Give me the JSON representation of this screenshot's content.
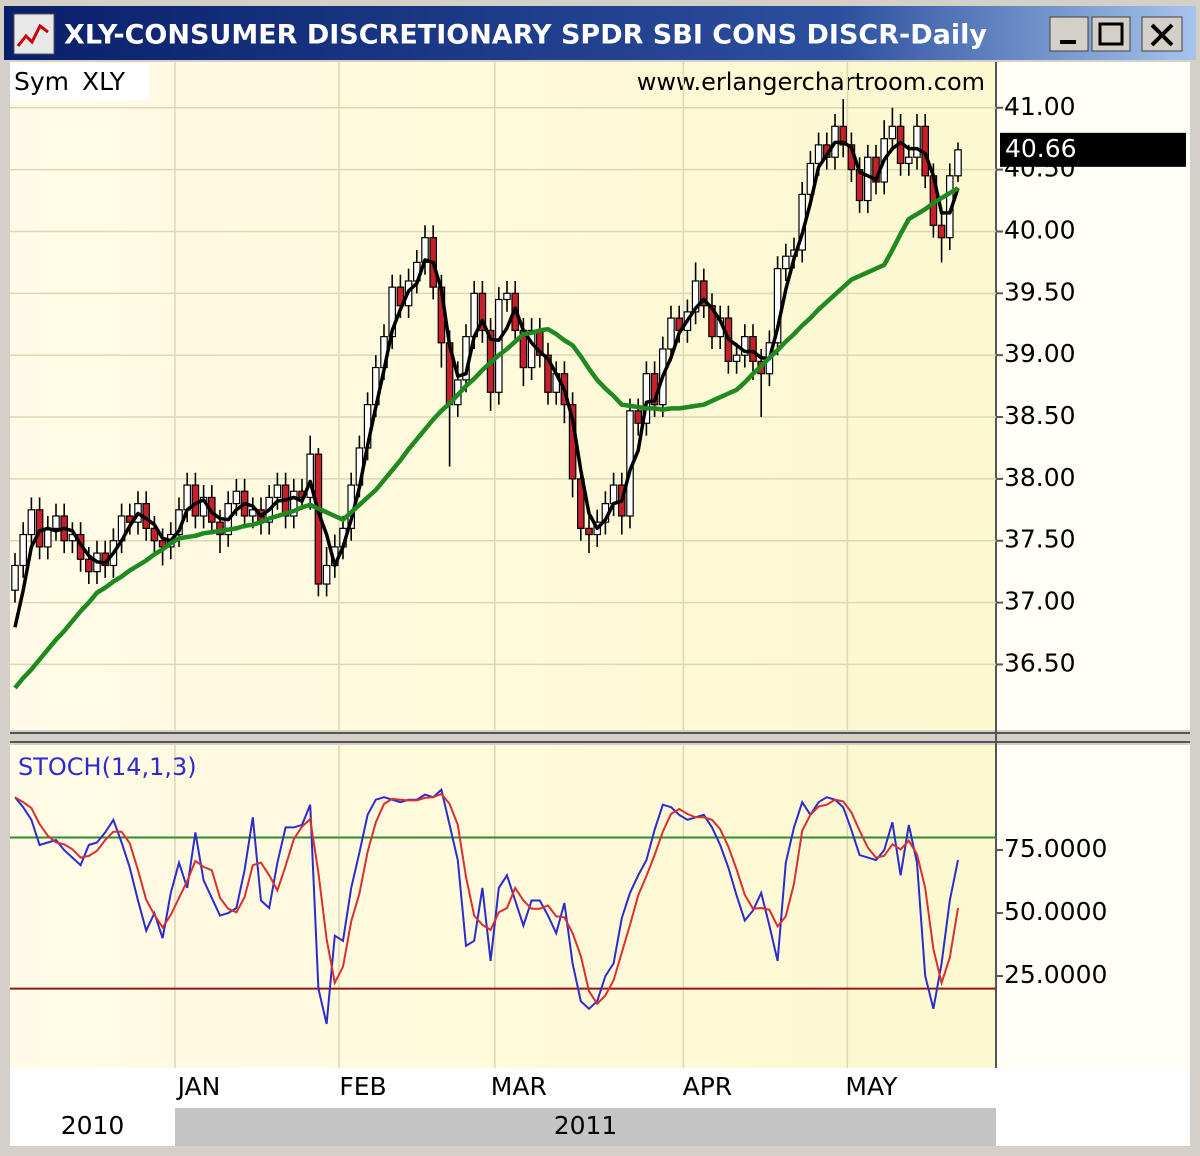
{
  "window": {
    "title": "XLY-CONSUMER DISCRETIONARY SPDR SBI CONS DISCR-Daily"
  },
  "chart_data": [
    {
      "type": "candlestick",
      "symbol_label": "Sym",
      "symbol": "XLY",
      "watermark": "www.erlangerchartroom.com",
      "categories": [
        null,
        null,
        null,
        null,
        null,
        null,
        null,
        null,
        null,
        null,
        null,
        null,
        null,
        null,
        null,
        null,
        null,
        null,
        null,
        null,
        "JAN",
        null,
        null,
        null,
        null,
        null,
        null,
        null,
        null,
        null,
        null,
        null,
        null,
        null,
        null,
        null,
        null,
        null,
        null,
        null,
        "FEB",
        null,
        null,
        null,
        null,
        null,
        null,
        null,
        null,
        null,
        null,
        null,
        null,
        null,
        null,
        null,
        null,
        null,
        null,
        "MAR",
        null,
        null,
        null,
        null,
        null,
        null,
        null,
        null,
        null,
        null,
        null,
        null,
        null,
        null,
        null,
        null,
        null,
        null,
        null,
        null,
        null,
        null,
        "APR",
        null,
        null,
        null,
        null,
        null,
        null,
        null,
        null,
        null,
        null,
        null,
        null,
        null,
        null,
        null,
        null,
        null,
        null,
        null,
        "MAY",
        null,
        null,
        null,
        null,
        null,
        null,
        null,
        null,
        null,
        null,
        null,
        null,
        null
      ],
      "open": [
        37.1,
        37.3,
        37.55,
        37.75,
        37.45,
        37.6,
        37.7,
        37.5,
        37.55,
        37.35,
        37.25,
        37.4,
        37.3,
        37.5,
        37.7,
        37.65,
        37.8,
        37.6,
        37.5,
        37.45,
        37.55,
        37.75,
        37.95,
        37.7,
        37.85,
        37.65,
        37.55,
        37.8,
        37.9,
        37.7,
        37.75,
        37.65,
        37.85,
        37.95,
        37.7,
        37.9,
        37.85,
        38.2,
        37.15,
        37.3,
        37.45,
        37.6,
        37.95,
        38.25,
        38.6,
        38.9,
        39.15,
        39.55,
        39.4,
        39.6,
        39.75,
        39.95,
        39.55,
        39.1,
        38.6,
        38.8,
        39.15,
        39.5,
        39.2,
        38.7,
        39.45,
        39.5,
        39.2,
        38.9,
        39.2,
        39.0,
        38.7,
        38.85,
        38.6,
        38.0,
        37.6,
        37.55,
        37.65,
        37.8,
        37.95,
        37.7,
        38.55,
        38.45,
        38.85,
        38.6,
        39.05,
        39.3,
        39.2,
        39.35,
        39.6,
        39.4,
        39.15,
        39.3,
        38.95,
        39.0,
        39.15,
        38.95,
        38.85,
        39.1,
        39.7,
        39.8,
        39.85,
        40.3,
        40.55,
        40.7,
        40.6,
        40.85,
        40.7,
        40.5,
        40.25,
        40.6,
        40.4,
        40.75,
        40.85,
        40.55,
        40.6,
        40.85,
        40.45,
        40.05,
        39.95,
        40.45
      ],
      "high": [
        37.4,
        37.65,
        37.85,
        37.85,
        37.7,
        37.8,
        37.8,
        37.65,
        37.65,
        37.45,
        37.5,
        37.5,
        37.6,
        37.8,
        37.8,
        37.9,
        37.9,
        37.7,
        37.6,
        37.65,
        37.85,
        38.05,
        38.05,
        37.95,
        37.95,
        37.75,
        37.9,
        38.0,
        38.0,
        37.85,
        37.85,
        37.95,
        38.05,
        38.05,
        38.0,
        38.0,
        38.35,
        38.25,
        37.45,
        37.55,
        37.7,
        38.05,
        38.35,
        38.7,
        39.0,
        39.25,
        39.65,
        39.65,
        39.7,
        39.85,
        40.05,
        40.05,
        39.65,
        39.2,
        38.95,
        39.25,
        39.6,
        39.6,
        39.3,
        39.55,
        39.6,
        39.6,
        39.3,
        39.3,
        39.3,
        39.1,
        38.95,
        38.95,
        38.7,
        38.1,
        37.7,
        37.75,
        37.9,
        38.05,
        38.05,
        38.65,
        38.65,
        38.95,
        38.95,
        39.15,
        39.4,
        39.4,
        39.45,
        39.75,
        39.7,
        39.5,
        39.4,
        39.4,
        39.1,
        39.25,
        39.25,
        39.05,
        39.2,
        39.8,
        39.9,
        39.95,
        40.4,
        40.65,
        40.8,
        40.8,
        40.95,
        41.07,
        40.8,
        40.6,
        40.7,
        40.7,
        40.9,
        41.0,
        40.95,
        40.7,
        40.95,
        40.95,
        40.55,
        40.15,
        40.55,
        40.72
      ],
      "low": [
        37.0,
        37.2,
        37.45,
        37.35,
        37.35,
        37.5,
        37.4,
        37.4,
        37.25,
        37.15,
        37.15,
        37.2,
        37.2,
        37.4,
        37.55,
        37.55,
        37.5,
        37.4,
        37.3,
        37.35,
        37.45,
        37.65,
        37.6,
        37.6,
        37.55,
        37.4,
        37.45,
        37.7,
        37.6,
        37.6,
        37.55,
        37.55,
        37.75,
        37.6,
        37.6,
        37.75,
        37.75,
        37.05,
        37.05,
        37.2,
        37.35,
        37.5,
        37.85,
        38.15,
        38.5,
        38.8,
        39.05,
        39.3,
        39.3,
        39.5,
        39.65,
        39.45,
        38.9,
        38.1,
        38.5,
        38.7,
        39.05,
        39.1,
        38.55,
        38.6,
        39.35,
        39.1,
        38.75,
        38.8,
        38.9,
        38.6,
        38.6,
        38.45,
        37.85,
        37.5,
        37.4,
        37.45,
        37.55,
        37.7,
        37.55,
        37.6,
        38.35,
        38.35,
        38.5,
        38.5,
        38.95,
        39.1,
        39.1,
        39.25,
        39.3,
        39.05,
        39.05,
        38.85,
        38.85,
        38.9,
        38.8,
        38.5,
        38.75,
        39.0,
        39.6,
        39.7,
        39.75,
        40.2,
        40.45,
        40.5,
        40.5,
        40.6,
        40.4,
        40.15,
        40.15,
        40.3,
        40.3,
        40.65,
        40.45,
        40.45,
        40.5,
        40.35,
        39.95,
        39.75,
        39.85,
        40.4
      ],
      "close": [
        37.3,
        37.55,
        37.75,
        37.45,
        37.6,
        37.7,
        37.5,
        37.55,
        37.35,
        37.25,
        37.4,
        37.3,
        37.5,
        37.7,
        37.65,
        37.8,
        37.6,
        37.5,
        37.45,
        37.55,
        37.75,
        37.95,
        37.7,
        37.85,
        37.65,
        37.55,
        37.8,
        37.9,
        37.7,
        37.75,
        37.65,
        37.85,
        37.95,
        37.7,
        37.9,
        37.85,
        38.2,
        37.15,
        37.3,
        37.45,
        37.6,
        37.95,
        38.25,
        38.6,
        38.9,
        39.15,
        39.55,
        39.4,
        39.6,
        39.75,
        39.95,
        39.55,
        39.1,
        38.6,
        38.8,
        39.15,
        39.5,
        39.2,
        38.7,
        39.45,
        39.5,
        39.2,
        38.9,
        39.2,
        39.0,
        38.7,
        38.85,
        38.6,
        38.0,
        37.6,
        37.55,
        37.65,
        37.8,
        37.95,
        37.7,
        38.55,
        38.45,
        38.85,
        38.6,
        39.05,
        39.3,
        39.2,
        39.35,
        39.6,
        39.4,
        39.15,
        39.3,
        38.95,
        39.0,
        39.15,
        38.95,
        38.85,
        39.1,
        39.7,
        39.8,
        39.85,
        40.3,
        40.55,
        40.7,
        40.6,
        40.85,
        40.7,
        40.5,
        40.25,
        40.6,
        40.4,
        40.75,
        40.85,
        40.55,
        40.6,
        40.85,
        40.45,
        40.05,
        39.95,
        40.45,
        40.66
      ],
      "up_color": "#ffffff",
      "down_color": "#c8202a",
      "overlays": [
        {
          "color": "#000000",
          "values": [
            36.8,
            37.1,
            37.45,
            37.58,
            37.6,
            37.58,
            37.6,
            37.58,
            37.47,
            37.38,
            37.33,
            37.32,
            37.4,
            37.5,
            37.62,
            37.72,
            37.68,
            37.63,
            37.52,
            37.5,
            37.58,
            37.75,
            37.8,
            37.83,
            37.73,
            37.68,
            37.67,
            37.75,
            37.8,
            37.78,
            37.7,
            37.75,
            37.82,
            37.83,
            37.85,
            37.82,
            37.98,
            37.73,
            37.55,
            37.3,
            37.45,
            37.67,
            37.93,
            38.27,
            38.58,
            38.88,
            39.2,
            39.37,
            39.52,
            39.58,
            39.77,
            39.75,
            39.53,
            39.08,
            38.83,
            38.85,
            39.15,
            39.28,
            39.13,
            39.12,
            39.22,
            39.38,
            39.2,
            39.1,
            39.03,
            38.97,
            38.85,
            38.72,
            38.48,
            38.07,
            37.72,
            37.6,
            37.67,
            37.8,
            37.82,
            38.07,
            38.23,
            38.62,
            38.63,
            38.83,
            38.98,
            39.18,
            39.28,
            39.38,
            39.45,
            39.38,
            39.28,
            39.13,
            39.08,
            39.03,
            39.03,
            38.98,
            38.97,
            39.22,
            39.53,
            39.78,
            39.98,
            40.23,
            40.52,
            40.62,
            40.72,
            40.72,
            40.68,
            40.48,
            40.45,
            40.42,
            40.58,
            40.67,
            40.72,
            40.67,
            40.67,
            40.63,
            40.45,
            40.15,
            40.15,
            40.35
          ]
        },
        {
          "color": "#1f8a1f",
          "values": [
            36.31,
            36.39,
            36.46,
            36.54,
            36.62,
            36.7,
            36.77,
            36.85,
            36.93,
            37.0,
            37.08,
            37.12,
            37.17,
            37.21,
            37.26,
            37.3,
            37.34,
            37.39,
            37.43,
            37.48,
            37.52,
            37.53,
            37.54,
            37.56,
            37.57,
            37.58,
            37.59,
            37.6,
            37.62,
            37.63,
            37.65,
            37.68,
            37.7,
            37.72,
            37.74,
            37.77,
            37.79,
            37.76,
            37.73,
            37.7,
            37.67,
            37.73,
            37.79,
            37.85,
            37.91,
            37.99,
            38.07,
            38.15,
            38.24,
            38.32,
            38.4,
            38.48,
            38.55,
            38.61,
            38.68,
            38.75,
            38.81,
            38.88,
            38.94,
            39.0,
            39.05,
            39.11,
            39.17,
            39.18,
            39.2,
            39.21,
            39.17,
            39.12,
            39.08,
            38.99,
            38.89,
            38.8,
            38.73,
            38.67,
            38.6,
            38.59,
            38.58,
            38.57,
            38.57,
            38.56,
            38.57,
            38.57,
            38.58,
            38.59,
            38.6,
            38.63,
            38.66,
            38.69,
            38.72,
            38.78,
            38.85,
            38.91,
            38.98,
            39.04,
            39.11,
            39.17,
            39.24,
            39.3,
            39.37,
            39.43,
            39.49,
            39.55,
            39.61,
            39.64,
            39.67,
            39.7,
            39.73,
            39.85,
            39.98,
            40.1,
            40.14,
            40.18,
            40.23,
            40.27,
            40.31,
            40.35
          ]
        }
      ],
      "ylim": [
        35.97,
        41.37
      ],
      "yticks": [
        {
          "value": 36.5,
          "label": "36.50"
        },
        {
          "value": 37,
          "label": "37.00"
        },
        {
          "value": 37.5,
          "label": "37.50"
        },
        {
          "value": 38,
          "label": "38.00"
        },
        {
          "value": 38.5,
          "label": "38.50"
        },
        {
          "value": 39,
          "label": "39.00"
        },
        {
          "value": 39.5,
          "label": "39.50"
        },
        {
          "value": 40,
          "label": "40.00"
        },
        {
          "value": 40.5,
          "label": "40.50"
        },
        {
          "value": 41,
          "label": "41.00"
        }
      ],
      "last_value": 40.66,
      "last_value_label": "40.66",
      "grid": true
    },
    {
      "type": "line",
      "title": "STOCH(14,1,3)",
      "series": [
        {
          "color": "#2b2bd0",
          "values": [
            96,
            92,
            87,
            77,
            78,
            79,
            75,
            72,
            69,
            77,
            78,
            82,
            87,
            78,
            68,
            55,
            43,
            50,
            40,
            58,
            70,
            60,
            82,
            63,
            56,
            49,
            50,
            52,
            67,
            88,
            55,
            52,
            70,
            84,
            84,
            85,
            93,
            20,
            6,
            41,
            39,
            60,
            74,
            89,
            95,
            96,
            95,
            94,
            95,
            95,
            97,
            96,
            99,
            85,
            71,
            37,
            39,
            60,
            31,
            60,
            65,
            55,
            45,
            55,
            55,
            49,
            42,
            54,
            30,
            15,
            12,
            15,
            25,
            30,
            48,
            58,
            65,
            71,
            83,
            93,
            92,
            89,
            87,
            88,
            89,
            84,
            77,
            68,
            57,
            47,
            51,
            58,
            45,
            31,
            70,
            84,
            94,
            89,
            94,
            96,
            95,
            92,
            83,
            73,
            72,
            71,
            75,
            86,
            65,
            85,
            70,
            25,
            12,
            30,
            55,
            71
          ]
        },
        {
          "color": "#d83030",
          "values": [
            96,
            94,
            91.7,
            85.3,
            80.7,
            78,
            77.3,
            75.3,
            72,
            72.7,
            74.7,
            79,
            82.3,
            82.3,
            77.7,
            67,
            55.3,
            49.3,
            44.3,
            49.3,
            56,
            62.7,
            70.7,
            68.3,
            67,
            56,
            51.7,
            50.3,
            56.3,
            69,
            70,
            65,
            59,
            68.7,
            79.3,
            84.3,
            87.3,
            66,
            39.7,
            22.3,
            28.7,
            46.7,
            57.7,
            74.3,
            86,
            93.3,
            95.3,
            95,
            94.7,
            94.7,
            95.7,
            96,
            97.3,
            93.3,
            85,
            64.3,
            49,
            45.3,
            43.3,
            50.3,
            52,
            60,
            55,
            51.7,
            51.7,
            53,
            48.7,
            48.3,
            42,
            33,
            19,
            14,
            17.3,
            23.3,
            34.3,
            45.3,
            57,
            64.7,
            73,
            82.3,
            89.3,
            91.3,
            89.3,
            88,
            88,
            87,
            83.3,
            76.3,
            67.3,
            57.3,
            51.7,
            52,
            51.3,
            44.7,
            48.7,
            61.7,
            82.7,
            89,
            92.3,
            93,
            95,
            94.3,
            90,
            82.7,
            76,
            72,
            72.7,
            77.3,
            75.3,
            78.7,
            73.3,
            60,
            35.7,
            22.3,
            32.3,
            52
          ]
        }
      ],
      "reference_lines": [
        {
          "value": 80,
          "color": "#2e8b2e"
        },
        {
          "value": 20,
          "color": "#8b1a1a"
        }
      ],
      "ylim": [
        -11.5,
        116.7
      ],
      "yticks": [
        {
          "value": 25,
          "label": "25.0000"
        },
        {
          "value": 50,
          "label": "50.0000"
        },
        {
          "value": 75,
          "label": "75.0000"
        }
      ],
      "years": [
        "2010",
        "2011"
      ]
    }
  ]
}
